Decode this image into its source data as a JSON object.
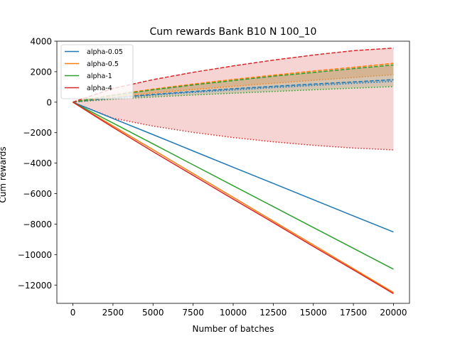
{
  "chart_data": {
    "type": "line",
    "title": "Cum rewards Bank B10 N 100_10",
    "xlabel": "Number of batches",
    "ylabel": "Cum rewards",
    "xlim": [
      -1000,
      21000
    ],
    "ylim": [
      -13200,
      4000
    ],
    "xticks": [
      0,
      2500,
      5000,
      7500,
      10000,
      12500,
      15000,
      17500,
      20000
    ],
    "yticks": [
      4000,
      2000,
      0,
      -2000,
      -4000,
      -6000,
      -8000,
      -10000,
      -12000
    ],
    "legend_position": "upper-left",
    "grid": false,
    "series": [
      {
        "name": "alpha-0.05",
        "color": "#1f77b4",
        "x": [
          0,
          2500,
          5000,
          7500,
          10000,
          12500,
          15000,
          17500,
          20000
        ],
        "values": [
          0,
          -1070,
          -2130,
          -3200,
          -4270,
          -5330,
          -6400,
          -7460,
          -8520
        ],
        "upper": [
          0,
          290,
          510,
          700,
          880,
          1040,
          1190,
          1330,
          1480
        ],
        "lower": [
          0,
          260,
          460,
          640,
          800,
          950,
          1090,
          1230,
          1360
        ]
      },
      {
        "name": "alpha-0.5",
        "color": "#ff7f0e",
        "x": [
          0,
          2500,
          5000,
          7500,
          10000,
          12500,
          15000,
          17500,
          20000
        ],
        "values": [
          0,
          -1560,
          -3120,
          -4680,
          -6240,
          -7800,
          -9360,
          -10920,
          -12480
        ],
        "upper": [
          0,
          480,
          860,
          1190,
          1490,
          1770,
          2040,
          2290,
          2550
        ],
        "lower": [
          0,
          330,
          600,
          830,
          1040,
          1240,
          1430,
          1620,
          1800
        ]
      },
      {
        "name": "alpha-1",
        "color": "#2ca02c",
        "x": [
          0,
          2500,
          5000,
          7500,
          10000,
          12500,
          15000,
          17500,
          20000
        ],
        "values": [
          0,
          -1370,
          -2740,
          -4110,
          -5480,
          -6850,
          -8220,
          -9590,
          -10960
        ],
        "upper": [
          0,
          450,
          810,
          1130,
          1420,
          1700,
          1950,
          2200,
          2440
        ],
        "lower": [
          0,
          190,
          340,
          470,
          590,
          700,
          810,
          920,
          1020
        ]
      },
      {
        "name": "alpha-4",
        "color": "#d62728",
        "x": [
          0,
          2500,
          5000,
          7500,
          10000,
          12500,
          15000,
          17500,
          20000
        ],
        "values": [
          0,
          -1650,
          -3250,
          -4800,
          -6360,
          -7900,
          -9460,
          -11000,
          -12560
        ],
        "upper": [
          0,
          900,
          1480,
          1960,
          2380,
          2760,
          3090,
          3380,
          3550
        ],
        "lower": [
          0,
          -1050,
          -1570,
          -1980,
          -2320,
          -2600,
          -2830,
          -3010,
          -3130
        ]
      }
    ]
  }
}
